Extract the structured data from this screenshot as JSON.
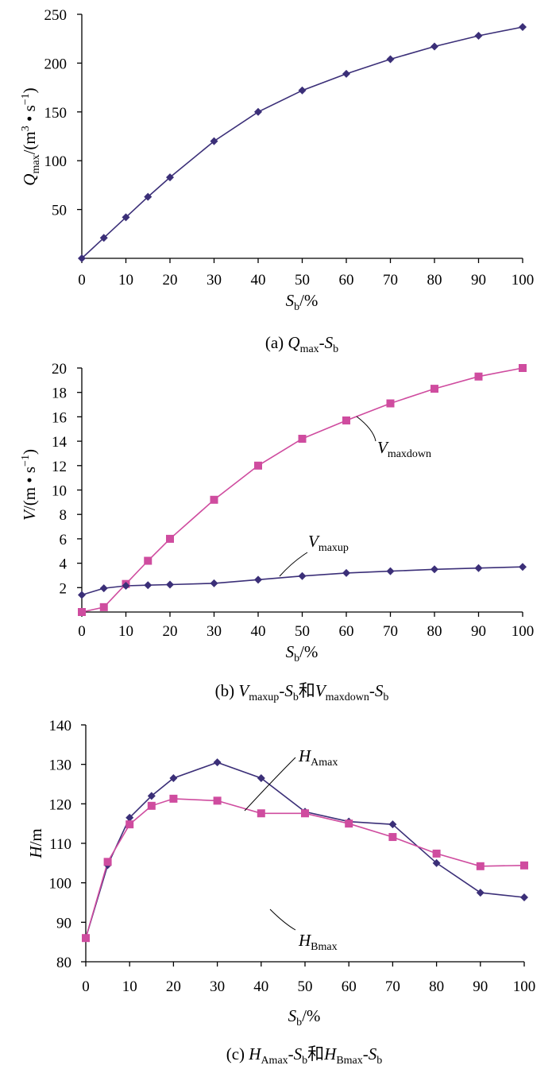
{
  "colors": {
    "series_navy": "#3b2f78",
    "series_pink": "#cf4c9f"
  },
  "chart_data": [
    {
      "type": "line",
      "caption": {
        "prefix": "(a) ",
        "q": "Q",
        "q_sub": "max",
        "mid": "-",
        "s": "S",
        "s_sub": "b"
      },
      "ylabel": {
        "q": "Q",
        "q_sub": "max",
        "rest": "/(m",
        "sup1": "3",
        "mid": " • s",
        "sup2": "−1",
        "end": ")"
      },
      "xlabel": {
        "s": "S",
        "s_sub": "b",
        "rest": "/%"
      },
      "xlim": [
        0,
        100
      ],
      "ylim": [
        0,
        250
      ],
      "xticks": [
        0,
        10,
        20,
        30,
        40,
        50,
        60,
        70,
        80,
        90,
        100
      ],
      "yticks": [
        50,
        100,
        150,
        200,
        250
      ],
      "series": [
        {
          "marker": "diamond",
          "color": "#3b2f78",
          "x": [
            0,
            5,
            10,
            15,
            20,
            30,
            40,
            50,
            60,
            70,
            80,
            90,
            100
          ],
          "y": [
            0,
            21,
            42,
            63,
            83,
            120,
            150,
            172,
            189,
            204,
            217,
            228,
            237
          ]
        }
      ]
    },
    {
      "type": "line",
      "caption": {
        "prefix": "(b) ",
        "v1": "V",
        "v1_sub": "maxup",
        "mid1": "-",
        "s1": "S",
        "s1_sub": "b",
        "join": "和",
        "v2": "V",
        "v2_sub": "maxdown",
        "mid2": "-",
        "s2": "S",
        "s2_sub": "b"
      },
      "ylabel": {
        "v": "V",
        "rest": "/(m • s",
        "sup": "−1",
        "end": ")"
      },
      "xlabel": {
        "s": "S",
        "s_sub": "b",
        "rest": "/%"
      },
      "xlim": [
        0,
        100
      ],
      "ylim": [
        0,
        20
      ],
      "xticks": [
        0,
        10,
        20,
        30,
        40,
        50,
        60,
        70,
        80,
        90,
        100
      ],
      "yticks": [
        2,
        4,
        6,
        8,
        10,
        12,
        14,
        16,
        18,
        20
      ],
      "annotations": [
        {
          "v": "V",
          "sub": "maxdown"
        },
        {
          "v": "V",
          "sub": "maxup"
        }
      ],
      "series": [
        {
          "marker": "square",
          "color": "#cf4c9f",
          "x": [
            0,
            5,
            10,
            15,
            20,
            30,
            40,
            50,
            60,
            70,
            80,
            90,
            100
          ],
          "y": [
            0,
            0.4,
            2.3,
            4.2,
            6.0,
            9.2,
            12.0,
            14.2,
            15.7,
            17.1,
            18.3,
            19.3,
            20.0
          ]
        },
        {
          "marker": "diamond",
          "color": "#3b2f78",
          "x": [
            0,
            5,
            10,
            15,
            20,
            30,
            40,
            50,
            60,
            70,
            80,
            90,
            100
          ],
          "y": [
            1.4,
            1.95,
            2.15,
            2.2,
            2.25,
            2.35,
            2.65,
            2.95,
            3.2,
            3.35,
            3.5,
            3.6,
            3.7
          ]
        }
      ]
    },
    {
      "type": "line",
      "caption": {
        "prefix": "(c) ",
        "h1": "H",
        "h1_sub": "Amax",
        "mid1": "-",
        "s1": "S",
        "s1_sub": "b",
        "join": "和",
        "h2": "H",
        "h2_sub": "Bmax",
        "mid2": "-",
        "s2": "S",
        "s2_sub": "b"
      },
      "ylabel": {
        "h": "H",
        "rest": "/m"
      },
      "xlabel": {
        "s": "S",
        "s_sub": "b",
        "rest": "/%"
      },
      "xlim": [
        0,
        100
      ],
      "ylim": [
        80,
        140
      ],
      "xticks": [
        0,
        10,
        20,
        30,
        40,
        50,
        60,
        70,
        80,
        90,
        100
      ],
      "yticks": [
        80,
        90,
        100,
        110,
        120,
        130,
        140
      ],
      "annotations": [
        {
          "h": "H",
          "sub": "Amax"
        },
        {
          "h": "H",
          "sub": "Bmax"
        }
      ],
      "series": [
        {
          "marker": "diamond",
          "color": "#3b2f78",
          "x": [
            0,
            5,
            10,
            15,
            20,
            30,
            40,
            50,
            60,
            70,
            80,
            90,
            100
          ],
          "y": [
            86,
            104.5,
            116.5,
            122,
            126.5,
            130.5,
            126.5,
            118,
            115.5,
            114.8,
            105,
            97.5,
            96.3
          ]
        },
        {
          "marker": "square",
          "color": "#cf4c9f",
          "x": [
            0,
            5,
            10,
            15,
            20,
            30,
            40,
            50,
            60,
            70,
            80,
            90,
            100
          ],
          "y": [
            86,
            105.3,
            114.8,
            119.5,
            121.3,
            120.8,
            117.6,
            117.6,
            115,
            111.6,
            107.4,
            104.2,
            104.4
          ]
        }
      ]
    }
  ]
}
